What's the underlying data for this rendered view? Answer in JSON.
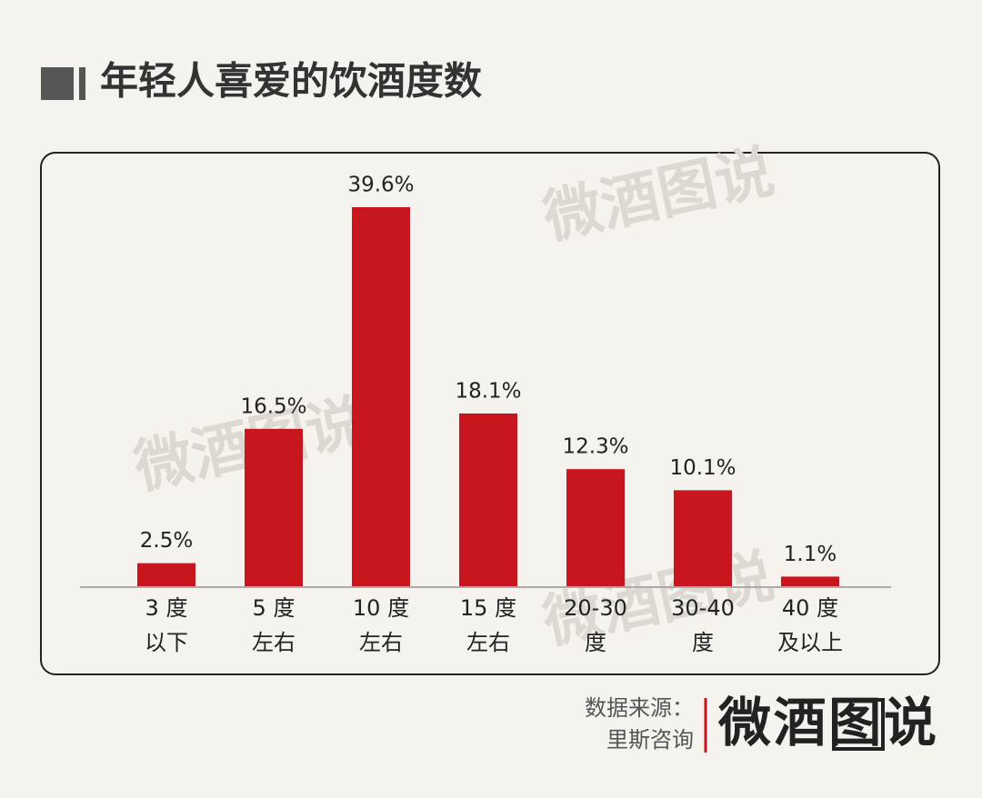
{
  "chart_data": {
    "type": "bar",
    "title": "年轻人喜爱的饮酒度数",
    "categories": [
      [
        "3 度",
        "以下"
      ],
      [
        "5 度",
        "左右"
      ],
      [
        "10 度",
        "左右"
      ],
      [
        "15 度",
        "左右"
      ],
      [
        "20-30",
        "度"
      ],
      [
        "30-40",
        "度"
      ],
      [
        "40 度",
        "及以上"
      ]
    ],
    "values": [
      2.5,
      16.5,
      39.6,
      18.1,
      12.3,
      10.1,
      1.1
    ],
    "value_labels": [
      "2.5%",
      "16.5%",
      "39.6%",
      "18.1%",
      "12.3%",
      "10.1%",
      "1.1%"
    ],
    "color": "#c8161e"
  },
  "footer": {
    "source_label": "数据来源：",
    "source": "里斯咨询",
    "brand": "微酒图说"
  }
}
